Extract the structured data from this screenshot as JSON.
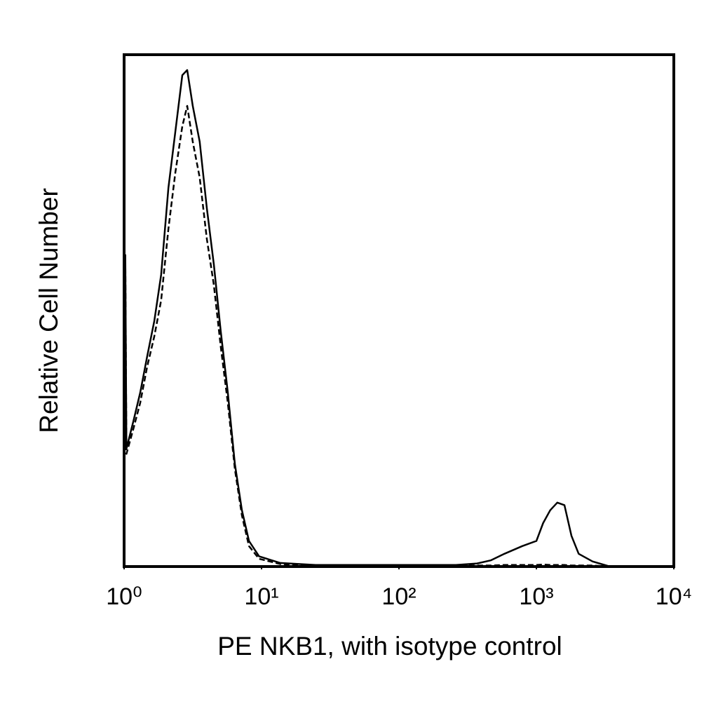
{
  "chart_data": {
    "type": "line",
    "x_label": "PE NKB1, with isotype control",
    "y_label": "Relative Cell Number",
    "xscale": "log",
    "xlim": [
      1,
      10000
    ],
    "ylim": [
      0,
      100
    ],
    "xticks": [
      {
        "value": 1,
        "label": "10⁰"
      },
      {
        "value": 10,
        "label": "10¹"
      },
      {
        "value": 100,
        "label": "10²"
      },
      {
        "value": 1000,
        "label": "10³"
      },
      {
        "value": 10000,
        "label": "10⁴"
      }
    ],
    "x": [
      1.02,
      1.04,
      1.17,
      1.31,
      1.47,
      1.66,
      1.86,
      2.1,
      2.36,
      2.65,
      2.88,
      3.16,
      3.55,
      4.0,
      4.5,
      5.05,
      5.68,
      6.4,
      7.2,
      8.1,
      9.6,
      13.7,
      24.7,
      80,
      260,
      370,
      465,
      585,
      790,
      1000,
      1120,
      1260,
      1420,
      1600,
      1800,
      2030,
      2560,
      3430,
      10000
    ],
    "series": [
      {
        "color": "#000000",
        "dash": false,
        "values": [
          61,
          23,
          28.5,
          34,
          41,
          48,
          57,
          74,
          85,
          96,
          97,
          90,
          83,
          70,
          59,
          46,
          34,
          20,
          11,
          5,
          2,
          0.7,
          0.3,
          0.3,
          0.3,
          0.6,
          1.2,
          2.5,
          4,
          5,
          8.5,
          11,
          12.5,
          12,
          6,
          2.5,
          1,
          0,
          0
        ]
      },
      {
        "color": "#000000",
        "dash": true,
        "values": [
          60,
          22,
          27,
          32,
          39,
          45,
          52,
          66,
          77,
          86,
          90,
          83,
          76,
          64,
          55,
          43,
          32,
          19,
          10,
          4,
          1.5,
          0.5,
          0.2,
          0.3,
          0.2,
          0.2,
          0.2,
          0.3,
          0.3,
          0.3,
          0.4,
          0.3,
          0.3,
          0.3,
          0.2,
          0.2,
          0.2,
          0,
          0
        ]
      }
    ]
  }
}
